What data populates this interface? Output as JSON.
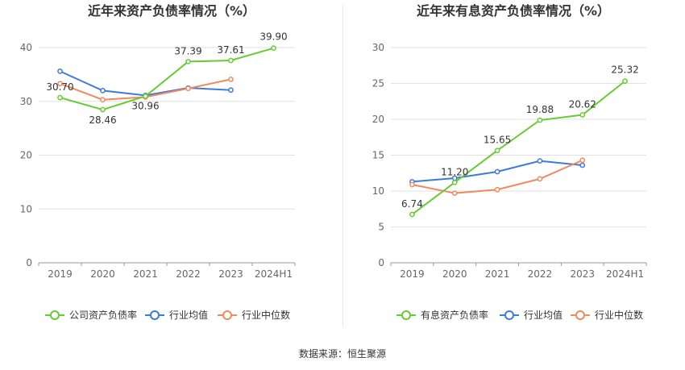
{
  "colors": {
    "company": "#66cc33",
    "avg": "#3d7bd9",
    "median": "#f08a5d",
    "grid": "#e0e0e0",
    "axis": "#666666",
    "text": "#333333"
  },
  "chart_data": [
    {
      "type": "line",
      "title": "近年来资产负债率情况（%）",
      "categories": [
        "2019",
        "2020",
        "2021",
        "2022",
        "2023",
        "2024H1"
      ],
      "ylim": [
        0,
        45
      ],
      "yticks": [
        0,
        10,
        20,
        30,
        40
      ],
      "series": [
        {
          "name": "公司资产负债率",
          "key": "company",
          "values": [
            30.7,
            28.46,
            30.96,
            37.39,
            37.61,
            39.9
          ],
          "labels": [
            "30.70",
            "28.46",
            "30.96",
            "37.39",
            "37.61",
            "39.90"
          ]
        },
        {
          "name": "行业均值",
          "key": "avg",
          "values": [
            35.6,
            32.0,
            31.1,
            32.5,
            32.1,
            null
          ]
        },
        {
          "name": "行业中位数",
          "key": "median",
          "values": [
            33.3,
            30.3,
            30.8,
            32.4,
            34.1,
            null
          ]
        }
      ]
    },
    {
      "type": "line",
      "title": "近年来有息资产负债率情况（%）",
      "categories": [
        "2019",
        "2020",
        "2021",
        "2022",
        "2023",
        "2024H1"
      ],
      "ylim": [
        0,
        30
      ],
      "yticks": [
        0,
        5,
        10,
        15,
        20,
        25,
        30
      ],
      "series": [
        {
          "name": "有息资产负债率",
          "key": "company",
          "values": [
            6.74,
            11.2,
            15.65,
            19.88,
            20.62,
            25.32
          ],
          "labels": [
            "6.74",
            "11.20",
            "15.65",
            "19.88",
            "20.62",
            "25.32"
          ]
        },
        {
          "name": "行业均值",
          "key": "avg",
          "values": [
            11.3,
            11.8,
            12.7,
            14.2,
            13.6,
            null
          ]
        },
        {
          "name": "行业中位数",
          "key": "median",
          "values": [
            10.9,
            9.7,
            10.2,
            11.7,
            14.3,
            null
          ]
        }
      ]
    }
  ],
  "footer": {
    "source": "数据来源：恒生聚源"
  }
}
